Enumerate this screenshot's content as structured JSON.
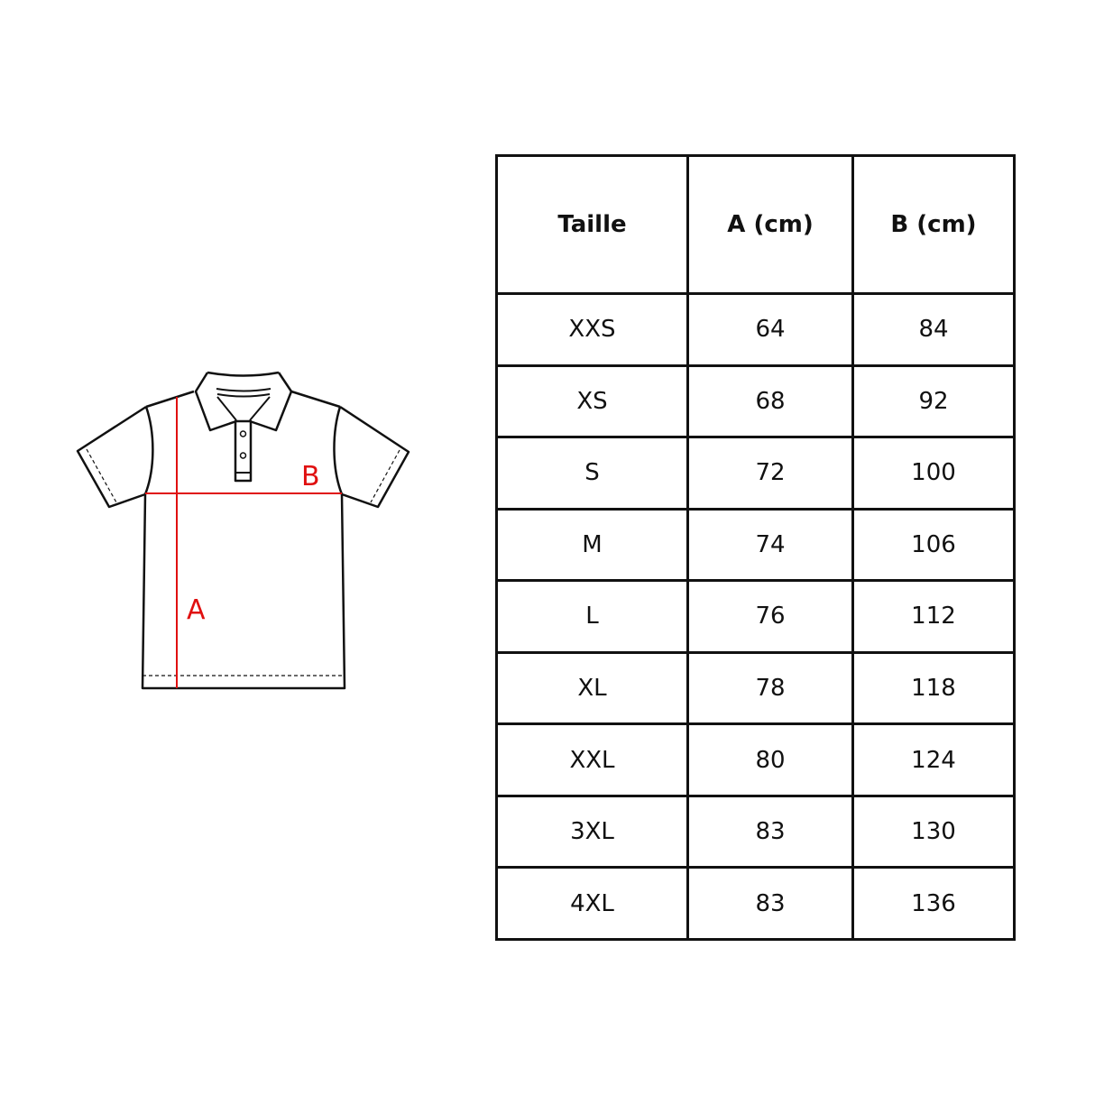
{
  "diagram": {
    "label_a": "A",
    "label_b": "B",
    "measure_color": "#e01010",
    "outline_color": "#111111"
  },
  "table": {
    "headers": [
      "Taille",
      "A (cm)",
      "B (cm)"
    ],
    "rows": [
      [
        "XXS",
        "64",
        "84"
      ],
      [
        "XS",
        "68",
        "92"
      ],
      [
        "S",
        "72",
        "100"
      ],
      [
        "M",
        "74",
        "106"
      ],
      [
        "L",
        "76",
        "112"
      ],
      [
        "XL",
        "78",
        "118"
      ],
      [
        "XXL",
        "80",
        "124"
      ],
      [
        "3XL",
        "83",
        "130"
      ],
      [
        "4XL",
        "83",
        "136"
      ]
    ]
  }
}
